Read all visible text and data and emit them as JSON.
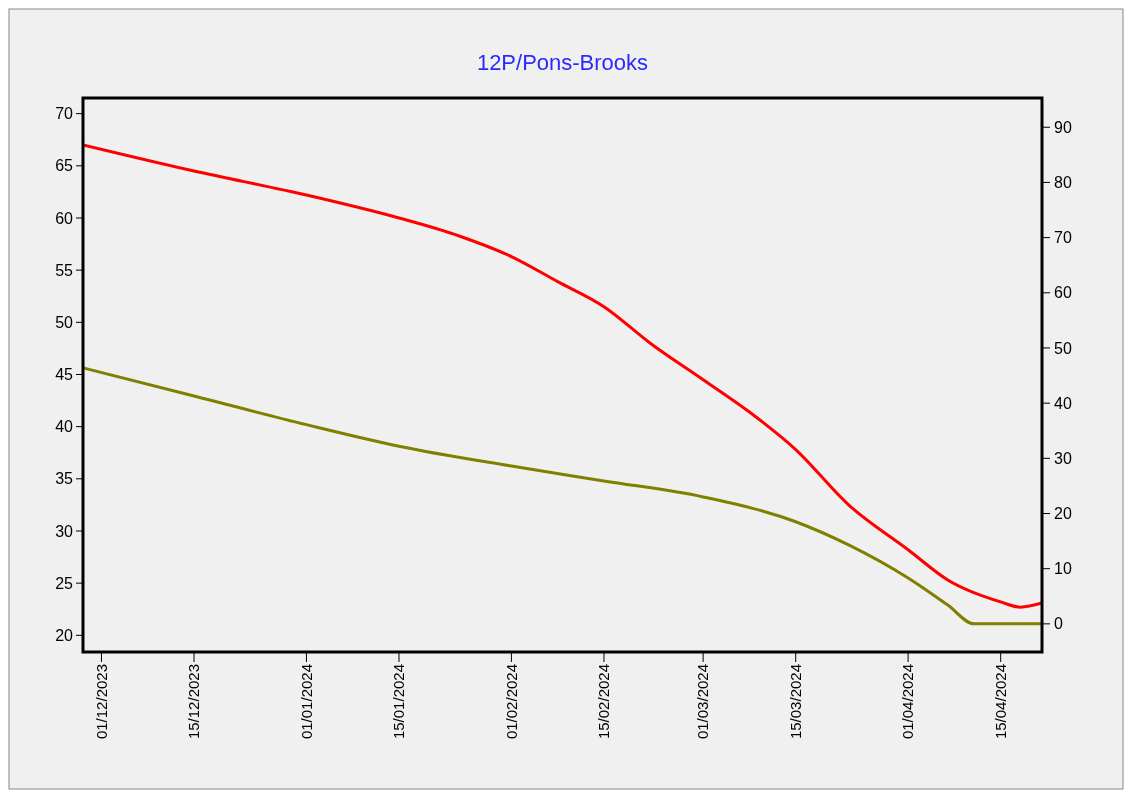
{
  "chart_data": {
    "type": "line",
    "title": "12P/Pons-Brooks",
    "xlim": [
      "2023-11-28T05:00",
      "2024-04-21T06:00"
    ],
    "xticks": [
      {
        "value": "2023-12-01",
        "label": "01/12/2023"
      },
      {
        "value": "2023-12-15",
        "label": "15/12/2023"
      },
      {
        "value": "2024-01-01",
        "label": "01/01/2024"
      },
      {
        "value": "2024-01-15",
        "label": "15/01/2024"
      },
      {
        "value": "2024-02-01",
        "label": "01/02/2024"
      },
      {
        "value": "2024-02-15",
        "label": "15/02/2024"
      },
      {
        "value": "2024-03-01",
        "label": "01/03/2024"
      },
      {
        "value": "2024-03-15",
        "label": "15/03/2024"
      },
      {
        "value": "2024-04-01",
        "label": "01/04/2024"
      },
      {
        "value": "2024-04-15",
        "label": "15/04/2024"
      }
    ],
    "ylim": [
      18.4,
      71.5
    ],
    "yticks": [
      20,
      25,
      30,
      35,
      40,
      45,
      50,
      55,
      60,
      65,
      70
    ],
    "y2lim": [
      -5.1,
      95.3
    ],
    "y2ticks": [
      0,
      10,
      20,
      30,
      40,
      50,
      60,
      70,
      80,
      90
    ],
    "series": [
      {
        "color": "#ff0000",
        "x": [
          "2023-11-28T05:00",
          "2023-12-15",
          "2024-01-01",
          "2024-01-15",
          "2024-01-24",
          "2024-02-01",
          "2024-02-08",
          "2024-02-15",
          "2024-02-22",
          "2024-03-01",
          "2024-03-08",
          "2024-03-15",
          "2024-03-23",
          "2024-04-01",
          "2024-04-07",
          "2024-04-15",
          "2024-04-18",
          "2024-04-21T06:00"
        ],
        "values": [
          67.0,
          64.5,
          62.2,
          60.0,
          58.3,
          56.3,
          53.9,
          51.5,
          48.0,
          44.5,
          41.4,
          37.8,
          32.5,
          28.2,
          25.3,
          23.2,
          22.7,
          23.1
        ]
      },
      {
        "color": "#808000",
        "axis": "y2",
        "x": [
          "2023-11-28T05:00",
          "2023-12-15",
          "2024-01-01",
          "2024-01-15",
          "2024-02-01",
          "2024-02-15",
          "2024-03-01",
          "2024-03-15",
          "2024-03-23",
          "2024-04-01",
          "2024-04-07",
          "2024-04-11",
          "2024-04-21T06:00"
        ],
        "values": [
          46.4,
          41.3,
          36.1,
          32.2,
          28.6,
          25.9,
          23.0,
          18.5,
          14.3,
          8.3,
          3.4,
          0,
          0
        ]
      }
    ]
  }
}
